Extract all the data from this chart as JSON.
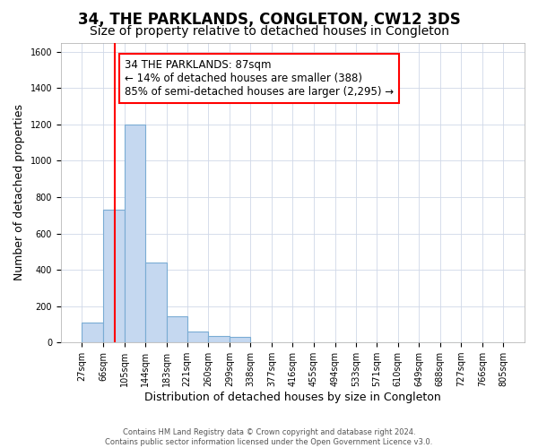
{
  "title": "34, THE PARKLANDS, CONGLETON, CW12 3DS",
  "subtitle": "Size of property relative to detached houses in Congleton",
  "xlabel": "Distribution of detached houses by size in Congleton",
  "ylabel": "Number of detached properties",
  "bin_edges": [
    27,
    66,
    105,
    144,
    183,
    221,
    260,
    299,
    338,
    377,
    416,
    455,
    494,
    533,
    571,
    610,
    649,
    688,
    727,
    766,
    805
  ],
  "bar_heights": [
    110,
    730,
    1200,
    440,
    145,
    60,
    35,
    30,
    0,
    0,
    0,
    0,
    0,
    0,
    0,
    0,
    0,
    0,
    0,
    0
  ],
  "bar_color": "#c5d8f0",
  "bar_edge_color": "#7aacd4",
  "red_line_x": 87,
  "annotation_text": "34 THE PARKLANDS: 87sqm\n← 14% of detached houses are smaller (388)\n85% of semi-detached houses are larger (2,295) →",
  "annotation_box_color": "white",
  "annotation_box_edge": "red",
  "ylim": [
    0,
    1650
  ],
  "yticks": [
    0,
    200,
    400,
    600,
    800,
    1000,
    1200,
    1400,
    1600
  ],
  "footer_line1": "Contains HM Land Registry data © Crown copyright and database right 2024.",
  "footer_line2": "Contains public sector information licensed under the Open Government Licence v3.0.",
  "background_color": "#ffffff",
  "grid_color": "#d0d8e8",
  "title_fontsize": 12,
  "subtitle_fontsize": 10,
  "axis_label_fontsize": 9,
  "tick_fontsize": 7,
  "annotation_fontsize": 8.5
}
